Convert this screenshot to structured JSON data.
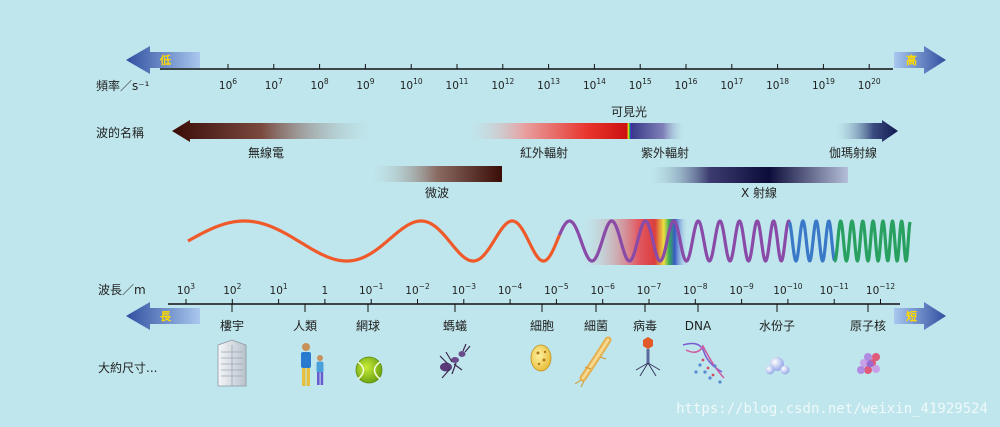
{
  "labels": {
    "frequency_row": "頻率／s⁻¹",
    "wave_name_row": "波的名稱",
    "wavelength_row": "波長／m",
    "size_row": "大約尺寸..."
  },
  "arrows": {
    "top_left": "低",
    "top_right": "高",
    "bottom_left": "長",
    "bottom_right": "短"
  },
  "frequency_ticks": [
    {
      "base": "10",
      "exp": "6"
    },
    {
      "base": "10",
      "exp": "7"
    },
    {
      "base": "10",
      "exp": "8"
    },
    {
      "base": "10",
      "exp": "9"
    },
    {
      "base": "10",
      "exp": "10"
    },
    {
      "base": "10",
      "exp": "11"
    },
    {
      "base": "10",
      "exp": "12"
    },
    {
      "base": "10",
      "exp": "13"
    },
    {
      "base": "10",
      "exp": "14"
    },
    {
      "base": "10",
      "exp": "15"
    },
    {
      "base": "10",
      "exp": "16"
    },
    {
      "base": "10",
      "exp": "17"
    },
    {
      "base": "10",
      "exp": "18"
    },
    {
      "base": "10",
      "exp": "19"
    },
    {
      "base": "10",
      "exp": "20"
    }
  ],
  "bands": {
    "radio": "無線電",
    "microwave": "微波",
    "infrared": "紅外輻射",
    "visible": "可見光",
    "ultraviolet": "紫外輻射",
    "xray": "X 射線",
    "gamma": "伽瑪射線"
  },
  "wavelength_ticks": [
    {
      "base": "10",
      "exp": "3"
    },
    {
      "base": "10",
      "exp": "2"
    },
    {
      "base": "10",
      "exp": "1"
    },
    {
      "base": "1",
      "exp": ""
    },
    {
      "base": "10",
      "exp": "−1"
    },
    {
      "base": "10",
      "exp": "−2"
    },
    {
      "base": "10",
      "exp": "−3"
    },
    {
      "base": "10",
      "exp": "−4"
    },
    {
      "base": "10",
      "exp": "−5"
    },
    {
      "base": "10",
      "exp": "−6"
    },
    {
      "base": "10",
      "exp": "−7"
    },
    {
      "base": "10",
      "exp": "−8"
    },
    {
      "base": "10",
      "exp": "−9"
    },
    {
      "base": "10",
      "exp": "−10"
    },
    {
      "base": "10",
      "exp": "−11"
    },
    {
      "base": "10",
      "exp": "−12"
    }
  ],
  "size_objects": [
    "樓宇",
    "人類",
    "網球",
    "螞蟻",
    "細胞",
    "細菌",
    "病毒",
    "DNA",
    "水份子",
    "原子核"
  ],
  "watermark": "https://blog.csdn.net/weixin_41929524"
}
